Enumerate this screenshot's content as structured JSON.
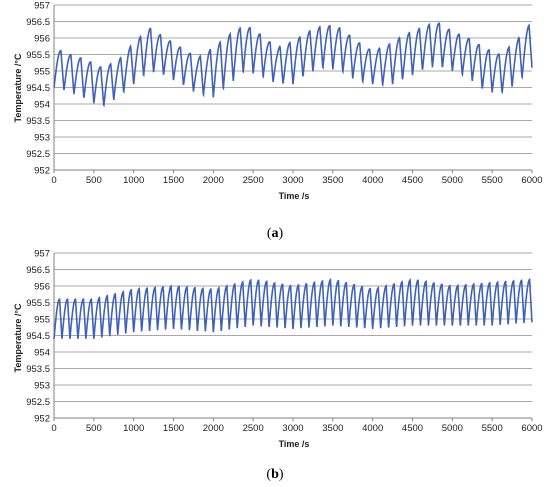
{
  "chart_data": [
    {
      "type": "line",
      "caption_prefix": "(",
      "caption_letter": "a",
      "caption_suffix": ")",
      "xlabel": "Time /s",
      "ylabel": "Temperature /°C",
      "xlim": [
        0,
        6000
      ],
      "ylim": [
        952,
        957
      ],
      "x_ticks": [
        "0",
        "500",
        "1000",
        "1500",
        "2000",
        "2500",
        "3000",
        "3500",
        "4000",
        "4500",
        "5000",
        "5500",
        "6000"
      ],
      "y_ticks": [
        "952",
        "952.5",
        "953",
        "953.5",
        "954",
        "954.5",
        "955",
        "955.5",
        "956",
        "956.5",
        "957"
      ],
      "grid": true,
      "series_color": "#3f62b8",
      "oscillation_period_s": 125,
      "envelope": {
        "x": [
          0,
          200,
          400,
          600,
          800,
          1000,
          1200,
          1400,
          1600,
          1800,
          2000,
          2200,
          2400,
          2600,
          2800,
          3000,
          3200,
          3400,
          3600,
          3800,
          4000,
          4200,
          4400,
          4600,
          4800,
          5000,
          5200,
          5400,
          5600,
          5800,
          6000
        ],
        "max": [
          955.7,
          955.5,
          955.35,
          955.1,
          955.3,
          955.85,
          956.3,
          956.0,
          955.7,
          955.4,
          955.7,
          956.1,
          956.4,
          956.1,
          955.7,
          955.9,
          956.2,
          956.4,
          956.3,
          955.9,
          955.6,
          955.8,
          956.1,
          956.3,
          956.5,
          956.2,
          956.0,
          955.7,
          955.5,
          955.9,
          956.5
        ],
        "min": [
          954.5,
          954.35,
          954.15,
          953.9,
          954.2,
          954.6,
          955.0,
          954.85,
          954.6,
          954.3,
          954.2,
          954.6,
          955.0,
          954.85,
          954.6,
          954.6,
          954.95,
          955.1,
          955.0,
          954.7,
          954.6,
          954.55,
          954.75,
          955.0,
          955.15,
          955.0,
          954.8,
          954.4,
          954.3,
          954.6,
          955.1
        ]
      }
    },
    {
      "type": "line",
      "caption_prefix": "(",
      "caption_letter": "b",
      "caption_suffix": ")",
      "xlabel": "Time /s",
      "ylabel": "Temperature /°C",
      "xlim": [
        0,
        6000
      ],
      "ylim": [
        952,
        957
      ],
      "x_ticks": [
        "0",
        "500",
        "1000",
        "1500",
        "2000",
        "2500",
        "3000",
        "3500",
        "4000",
        "4500",
        "5000",
        "5500",
        "6000"
      ],
      "y_ticks": [
        "952",
        "952.5",
        "953",
        "953.5",
        "954",
        "954.5",
        "955",
        "955.5",
        "956",
        "956.5",
        "957"
      ],
      "grid": true,
      "series_color": "#3f62b8",
      "oscillation_period_s": 100,
      "envelope": {
        "x": [
          0,
          500,
          1000,
          1500,
          2000,
          2500,
          3000,
          3500,
          4000,
          4500,
          5000,
          5500,
          6000
        ],
        "max": [
          955.6,
          955.6,
          955.9,
          956.0,
          955.9,
          956.2,
          956.0,
          956.2,
          955.9,
          956.2,
          956.0,
          956.1,
          956.2
        ],
        "min": [
          954.4,
          954.4,
          954.6,
          954.7,
          954.6,
          954.8,
          954.7,
          954.8,
          954.7,
          954.8,
          954.8,
          954.8,
          954.9
        ]
      }
    }
  ]
}
